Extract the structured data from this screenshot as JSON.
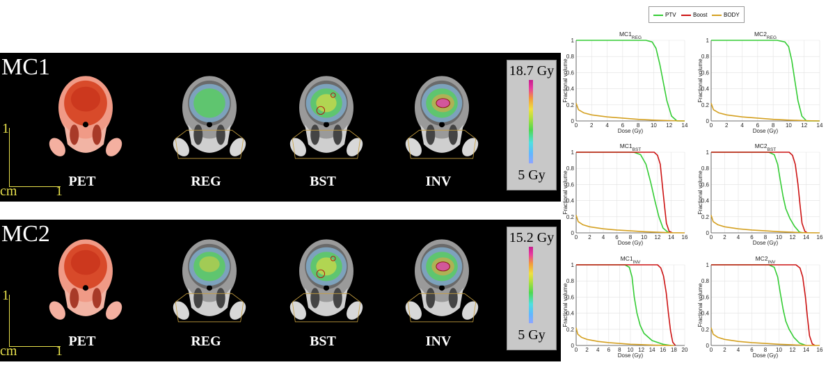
{
  "figure": {
    "rows": [
      {
        "label": "MC1",
        "scale_y": "1",
        "scale_x": "1",
        "scale_unit": "cm",
        "images": [
          "PET",
          "REG",
          "BST",
          "INV"
        ],
        "colorbar_max": "18.7 Gy",
        "colorbar_min": "5 Gy"
      },
      {
        "label": "MC2",
        "scale_y": "1",
        "scale_x": "1",
        "scale_unit": "cm",
        "images": [
          "PET",
          "REG",
          "BST",
          "INV"
        ],
        "colorbar_max": "15.2 Gy",
        "colorbar_min": "5 Gy"
      }
    ]
  },
  "legend": [
    {
      "name": "PTV",
      "color": "#33cc33"
    },
    {
      "name": "Boost",
      "color": "#cc1111"
    },
    {
      "name": "BODY",
      "color": "#d4a020"
    }
  ],
  "chart_data": [
    {
      "type": "line",
      "title_main": "MC1",
      "title_sub": "REG",
      "xlabel": "Dose (Gy)",
      "ylabel": "Fractional volume",
      "xlim": [
        0,
        14
      ],
      "xticks": [
        0,
        2,
        4,
        6,
        8,
        10,
        12,
        14
      ],
      "ylim": [
        0,
        1
      ],
      "yticks": [
        0,
        0.2,
        0.4,
        0.6,
        0.8,
        1
      ],
      "grid": true,
      "series": [
        {
          "name": "PTV",
          "x": [
            0,
            9,
            9.8,
            10.3,
            10.8,
            11.2,
            11.7,
            12.3,
            13,
            14
          ],
          "y": [
            1,
            1,
            0.98,
            0.9,
            0.7,
            0.5,
            0.25,
            0.06,
            0,
            0
          ]
        },
        {
          "name": "BODY",
          "x": [
            0,
            0.3,
            1,
            2,
            4,
            6,
            8,
            10,
            12,
            14
          ],
          "y": [
            0.22,
            0.14,
            0.1,
            0.075,
            0.05,
            0.035,
            0.02,
            0.01,
            0.004,
            0
          ]
        }
      ]
    },
    {
      "type": "line",
      "title_main": "MC2",
      "title_sub": "REG",
      "xlabel": "Dose (Gy)",
      "ylabel": "Fractional volume",
      "xlim": [
        0,
        14
      ],
      "xticks": [
        0,
        2,
        4,
        6,
        8,
        10,
        12,
        14
      ],
      "ylim": [
        0,
        1
      ],
      "yticks": [
        0,
        0.2,
        0.4,
        0.6,
        0.8,
        1
      ],
      "grid": true,
      "series": [
        {
          "name": "PTV",
          "x": [
            0,
            8.5,
            9.5,
            10,
            10.4,
            10.8,
            11.2,
            11.7,
            12.3,
            14
          ],
          "y": [
            1,
            1,
            0.98,
            0.92,
            0.75,
            0.5,
            0.25,
            0.06,
            0,
            0
          ]
        },
        {
          "name": "BODY",
          "x": [
            0,
            0.3,
            1,
            2,
            4,
            6,
            8,
            10,
            12,
            14
          ],
          "y": [
            0.22,
            0.14,
            0.1,
            0.075,
            0.05,
            0.035,
            0.02,
            0.01,
            0.004,
            0
          ]
        }
      ]
    },
    {
      "type": "line",
      "title_main": "MC1",
      "title_sub": "BST",
      "xlabel": "Dose (Gy)",
      "ylabel": "Fractional volume",
      "xlim": [
        0,
        16
      ],
      "xticks": [
        0,
        2,
        4,
        6,
        8,
        10,
        12,
        14,
        16
      ],
      "ylim": [
        0,
        1
      ],
      "yticks": [
        0,
        0.2,
        0.4,
        0.6,
        0.8,
        1
      ],
      "grid": true,
      "series": [
        {
          "name": "PTV",
          "x": [
            0,
            8.5,
            9.5,
            10.3,
            11,
            11.6,
            12.2,
            12.8,
            13.5,
            14
          ],
          "y": [
            1,
            1,
            0.97,
            0.85,
            0.62,
            0.4,
            0.2,
            0.06,
            0.01,
            0
          ]
        },
        {
          "name": "Boost",
          "x": [
            0,
            11.5,
            12,
            12.4,
            12.7,
            13,
            13.3,
            13.7,
            14.2
          ],
          "y": [
            1,
            1,
            0.96,
            0.85,
            0.6,
            0.35,
            0.12,
            0.02,
            0
          ]
        },
        {
          "name": "BODY",
          "x": [
            0,
            0.3,
            1,
            2,
            4,
            6,
            8,
            10,
            12,
            14,
            16
          ],
          "y": [
            0.22,
            0.14,
            0.1,
            0.075,
            0.05,
            0.035,
            0.025,
            0.015,
            0.008,
            0.002,
            0
          ]
        }
      ]
    },
    {
      "type": "line",
      "title_main": "MC2",
      "title_sub": "BST",
      "xlabel": "Dose (Gy)",
      "ylabel": "Fractional volume",
      "xlim": [
        0,
        16
      ],
      "xticks": [
        0,
        2,
        4,
        6,
        8,
        10,
        12,
        14,
        16
      ],
      "ylim": [
        0,
        1
      ],
      "yticks": [
        0,
        0.2,
        0.4,
        0.6,
        0.8,
        1
      ],
      "grid": true,
      "series": [
        {
          "name": "PTV",
          "x": [
            0,
            8.5,
            9.3,
            9.8,
            10.2,
            10.6,
            11,
            11.6,
            12.3,
            13,
            13.5
          ],
          "y": [
            1,
            1,
            0.97,
            0.85,
            0.65,
            0.45,
            0.3,
            0.18,
            0.08,
            0.01,
            0
          ]
        },
        {
          "name": "Boost",
          "x": [
            0,
            11.5,
            12,
            12.4,
            12.8,
            13.1,
            13.4,
            13.8,
            14.2
          ],
          "y": [
            1,
            1,
            0.96,
            0.85,
            0.6,
            0.35,
            0.12,
            0.02,
            0
          ]
        },
        {
          "name": "BODY",
          "x": [
            0,
            0.3,
            1,
            2,
            4,
            6,
            8,
            10,
            12,
            14,
            16
          ],
          "y": [
            0.22,
            0.14,
            0.1,
            0.075,
            0.05,
            0.035,
            0.025,
            0.015,
            0.008,
            0.002,
            0
          ]
        }
      ]
    },
    {
      "type": "line",
      "title_main": "MC1",
      "title_sub": "INV",
      "xlabel": "Dose (Gy)",
      "ylabel": "Fractional volume",
      "xlim": [
        0,
        20
      ],
      "xticks": [
        0,
        2,
        4,
        6,
        8,
        10,
        12,
        14,
        16,
        18,
        20
      ],
      "ylim": [
        0,
        1
      ],
      "yticks": [
        0,
        0.2,
        0.4,
        0.6,
        0.8,
        1
      ],
      "grid": true,
      "series": [
        {
          "name": "PTV",
          "x": [
            0,
            9,
            9.8,
            10.3,
            10.7,
            11.2,
            11.8,
            12.5,
            14,
            16,
            17.5
          ],
          "y": [
            1,
            1,
            0.97,
            0.85,
            0.6,
            0.4,
            0.25,
            0.15,
            0.06,
            0.015,
            0
          ]
        },
        {
          "name": "Boost",
          "x": [
            0,
            15,
            15.6,
            16.1,
            16.6,
            17,
            17.4,
            17.8,
            18.3
          ],
          "y": [
            1,
            1,
            0.96,
            0.86,
            0.65,
            0.4,
            0.18,
            0.04,
            0
          ]
        },
        {
          "name": "BODY",
          "x": [
            0,
            0.3,
            1,
            2,
            4,
            6,
            8,
            10,
            12,
            14,
            16,
            18
          ],
          "y": [
            0.22,
            0.14,
            0.1,
            0.075,
            0.05,
            0.035,
            0.025,
            0.015,
            0.01,
            0.005,
            0.002,
            0
          ]
        }
      ]
    },
    {
      "type": "line",
      "title_main": "MC2",
      "title_sub": "INV",
      "xlabel": "Dose (Gy)",
      "ylabel": "Fractional volume",
      "xlim": [
        0,
        16
      ],
      "xticks": [
        0,
        2,
        4,
        6,
        8,
        10,
        12,
        14,
        16
      ],
      "ylim": [
        0,
        1
      ],
      "yticks": [
        0,
        0.2,
        0.4,
        0.6,
        0.8,
        1
      ],
      "grid": true,
      "series": [
        {
          "name": "PTV",
          "x": [
            0,
            8.5,
            9.3,
            9.8,
            10.2,
            10.6,
            11,
            11.5,
            12.2,
            13,
            14
          ],
          "y": [
            1,
            1,
            0.97,
            0.85,
            0.65,
            0.45,
            0.3,
            0.2,
            0.1,
            0.03,
            0
          ]
        },
        {
          "name": "Boost",
          "x": [
            0,
            12.5,
            13.1,
            13.5,
            13.9,
            14.2,
            14.5,
            14.9,
            15.3
          ],
          "y": [
            1,
            1,
            0.96,
            0.85,
            0.6,
            0.35,
            0.12,
            0.02,
            0
          ]
        },
        {
          "name": "BODY",
          "x": [
            0,
            0.3,
            1,
            2,
            4,
            6,
            8,
            10,
            12,
            14,
            16
          ],
          "y": [
            0.22,
            0.14,
            0.1,
            0.075,
            0.05,
            0.035,
            0.025,
            0.015,
            0.008,
            0.002,
            0
          ]
        }
      ]
    }
  ]
}
